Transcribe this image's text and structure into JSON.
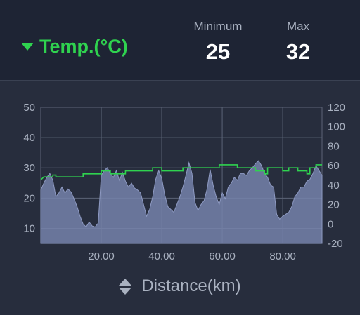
{
  "header": {
    "metric_label": "Temp.(°C)",
    "minimum": {
      "label": "Minimum",
      "value": "25"
    },
    "max": {
      "label": "Max",
      "value": "32"
    }
  },
  "footer": {
    "axis_title": "Distance(km)"
  },
  "colors": {
    "temp_line": "#2fd24f",
    "area_fill": "#7583aa",
    "area_stroke": "#8e9ac2",
    "grid": "#5c6477",
    "tick_label": "#a9b1c0"
  },
  "chart_data": {
    "type": "line",
    "x_range": [
      0,
      93
    ],
    "x_ticks": [
      "20.00",
      "40.00",
      "60.00",
      "80.00"
    ],
    "left_axis": {
      "range": [
        5,
        50
      ],
      "ticks": [
        "10",
        "20",
        "30",
        "40",
        "50"
      ]
    },
    "right_axis": {
      "range": [
        -20,
        120
      ],
      "ticks": [
        "-20",
        "0",
        "20",
        "40",
        "60",
        "80",
        "100",
        "120"
      ]
    },
    "grid": true,
    "series": [
      {
        "axis": "left",
        "step": true,
        "points": [
          [
            0,
            26
          ],
          [
            1,
            27
          ],
          [
            4,
            27
          ],
          [
            4,
            27.6
          ],
          [
            5,
            27.6
          ],
          [
            5,
            27
          ],
          [
            14,
            27
          ],
          [
            14,
            28
          ],
          [
            20,
            28
          ],
          [
            20,
            29
          ],
          [
            23,
            29
          ],
          [
            23,
            28
          ],
          [
            28,
            28
          ],
          [
            28,
            29
          ],
          [
            37,
            29
          ],
          [
            37,
            30
          ],
          [
            40,
            30
          ],
          [
            40,
            29
          ],
          [
            47,
            29
          ],
          [
            47,
            30
          ],
          [
            59,
            30
          ],
          [
            59,
            31
          ],
          [
            65,
            31
          ],
          [
            65,
            30
          ],
          [
            71,
            30
          ],
          [
            71,
            29
          ],
          [
            74,
            29
          ],
          [
            74,
            28
          ],
          [
            75,
            28
          ],
          [
            75,
            30
          ],
          [
            80,
            30
          ],
          [
            80,
            29
          ],
          [
            82,
            29
          ],
          [
            82,
            30
          ],
          [
            85,
            30
          ],
          [
            85,
            29
          ],
          [
            88,
            29
          ],
          [
            88,
            28
          ],
          [
            89,
            28
          ],
          [
            89,
            30
          ],
          [
            91,
            30
          ],
          [
            91,
            31
          ],
          [
            93,
            31
          ]
        ]
      },
      {
        "axis": "right",
        "area": true,
        "points": [
          [
            0,
            35
          ],
          [
            1,
            42
          ],
          [
            2,
            48
          ],
          [
            3,
            52
          ],
          [
            4,
            45
          ],
          [
            5,
            28
          ],
          [
            6,
            32
          ],
          [
            7,
            38
          ],
          [
            8,
            32
          ],
          [
            9,
            36
          ],
          [
            10,
            33
          ],
          [
            11,
            26
          ],
          [
            12,
            18
          ],
          [
            13,
            8
          ],
          [
            14,
            0
          ],
          [
            15,
            -3
          ],
          [
            16,
            2
          ],
          [
            17,
            -2
          ],
          [
            18,
            -3
          ],
          [
            19,
            1
          ],
          [
            20,
            50
          ],
          [
            21,
            55
          ],
          [
            22,
            58
          ],
          [
            23,
            52
          ],
          [
            24,
            48
          ],
          [
            25,
            55
          ],
          [
            26,
            45
          ],
          [
            27,
            53
          ],
          [
            28,
            44
          ],
          [
            29,
            38
          ],
          [
            30,
            42
          ],
          [
            31,
            37
          ],
          [
            32,
            35
          ],
          [
            33,
            32
          ],
          [
            34,
            20
          ],
          [
            35,
            8
          ],
          [
            36,
            15
          ],
          [
            37,
            28
          ],
          [
            38,
            46
          ],
          [
            39,
            55
          ],
          [
            40,
            47
          ],
          [
            41,
            30
          ],
          [
            42,
            18
          ],
          [
            43,
            15
          ],
          [
            44,
            12
          ],
          [
            45,
            20
          ],
          [
            46,
            28
          ],
          [
            47,
            38
          ],
          [
            48,
            50
          ],
          [
            49,
            63
          ],
          [
            50,
            52
          ],
          [
            51,
            22
          ],
          [
            52,
            14
          ],
          [
            53,
            20
          ],
          [
            54,
            24
          ],
          [
            55,
            36
          ],
          [
            56,
            56
          ],
          [
            57,
            40
          ],
          [
            58,
            28
          ],
          [
            59,
            20
          ],
          [
            60,
            32
          ],
          [
            61,
            26
          ],
          [
            62,
            38
          ],
          [
            63,
            42
          ],
          [
            64,
            48
          ],
          [
            65,
            45
          ],
          [
            66,
            52
          ],
          [
            67,
            52
          ],
          [
            68,
            50
          ],
          [
            69,
            55
          ],
          [
            70,
            58
          ],
          [
            71,
            62
          ],
          [
            72,
            65
          ],
          [
            73,
            60
          ],
          [
            74,
            52
          ],
          [
            75,
            48
          ],
          [
            76,
            40
          ],
          [
            77,
            38
          ],
          [
            78,
            10
          ],
          [
            79,
            5
          ],
          [
            80,
            8
          ],
          [
            81,
            10
          ],
          [
            82,
            12
          ],
          [
            83,
            18
          ],
          [
            84,
            28
          ],
          [
            85,
            32
          ],
          [
            86,
            38
          ],
          [
            87,
            38
          ],
          [
            88,
            44
          ],
          [
            89,
            46
          ],
          [
            90,
            52
          ],
          [
            91,
            60
          ],
          [
            92,
            55
          ],
          [
            93,
            50
          ]
        ]
      }
    ]
  }
}
